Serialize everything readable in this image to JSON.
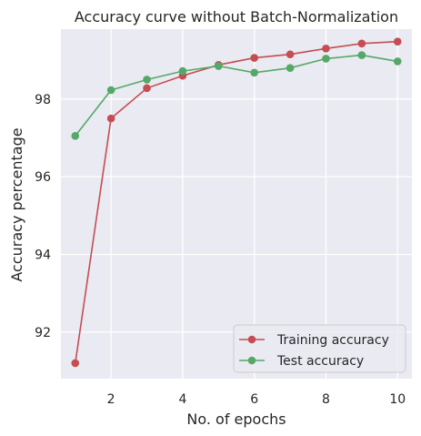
{
  "chart_data": {
    "type": "line",
    "title": "Accuracy curve without Batch-Normalization",
    "xlabel": "No. of epochs",
    "ylabel": "Accuracy percentage",
    "x": [
      1,
      2,
      3,
      4,
      5,
      6,
      7,
      8,
      9,
      10
    ],
    "xlim": [
      0.6,
      10.4
    ],
    "ylim": [
      90.8,
      99.8
    ],
    "xticks": [
      2,
      4,
      6,
      8,
      10
    ],
    "yticks": [
      92,
      94,
      96,
      98
    ],
    "grid": true,
    "legend_position": "lower right",
    "series": [
      {
        "name": "Training accuracy",
        "color": "#c44e52",
        "values": [
          91.2,
          97.5,
          98.28,
          98.6,
          98.88,
          99.06,
          99.15,
          99.3,
          99.43,
          99.48
        ]
      },
      {
        "name": "Test accuracy",
        "color": "#55a868",
        "values": [
          97.05,
          98.23,
          98.5,
          98.72,
          98.85,
          98.68,
          98.8,
          99.04,
          99.13,
          98.97
        ]
      }
    ]
  }
}
